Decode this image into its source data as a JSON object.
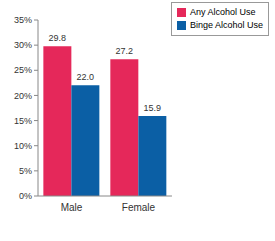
{
  "chart_data": {
    "type": "bar",
    "categories": [
      "Male",
      "Female"
    ],
    "series": [
      {
        "name": "Any Alcohol Use",
        "color": "#e5285a",
        "values": [
          29.8,
          27.2
        ],
        "value_labels": [
          "29.8",
          "27.2"
        ]
      },
      {
        "name": "Binge Alcohol Use",
        "color": "#0b5fa5",
        "values": [
          22.0,
          15.9
        ],
        "value_labels": [
          "22.0",
          "15.9"
        ]
      }
    ],
    "ylim": [
      0,
      35
    ],
    "yticks": [
      {
        "value": 0,
        "label": "0%"
      },
      {
        "value": 5,
        "label": "5%"
      },
      {
        "value": 10,
        "label": "10%"
      },
      {
        "value": 15,
        "label": "15%"
      },
      {
        "value": 20,
        "label": "20%"
      },
      {
        "value": 25,
        "label": "25%"
      },
      {
        "value": 30,
        "label": "30%"
      },
      {
        "value": 35,
        "label": "35%"
      }
    ],
    "grid": false,
    "legend": "top-right",
    "data_labels": true
  }
}
